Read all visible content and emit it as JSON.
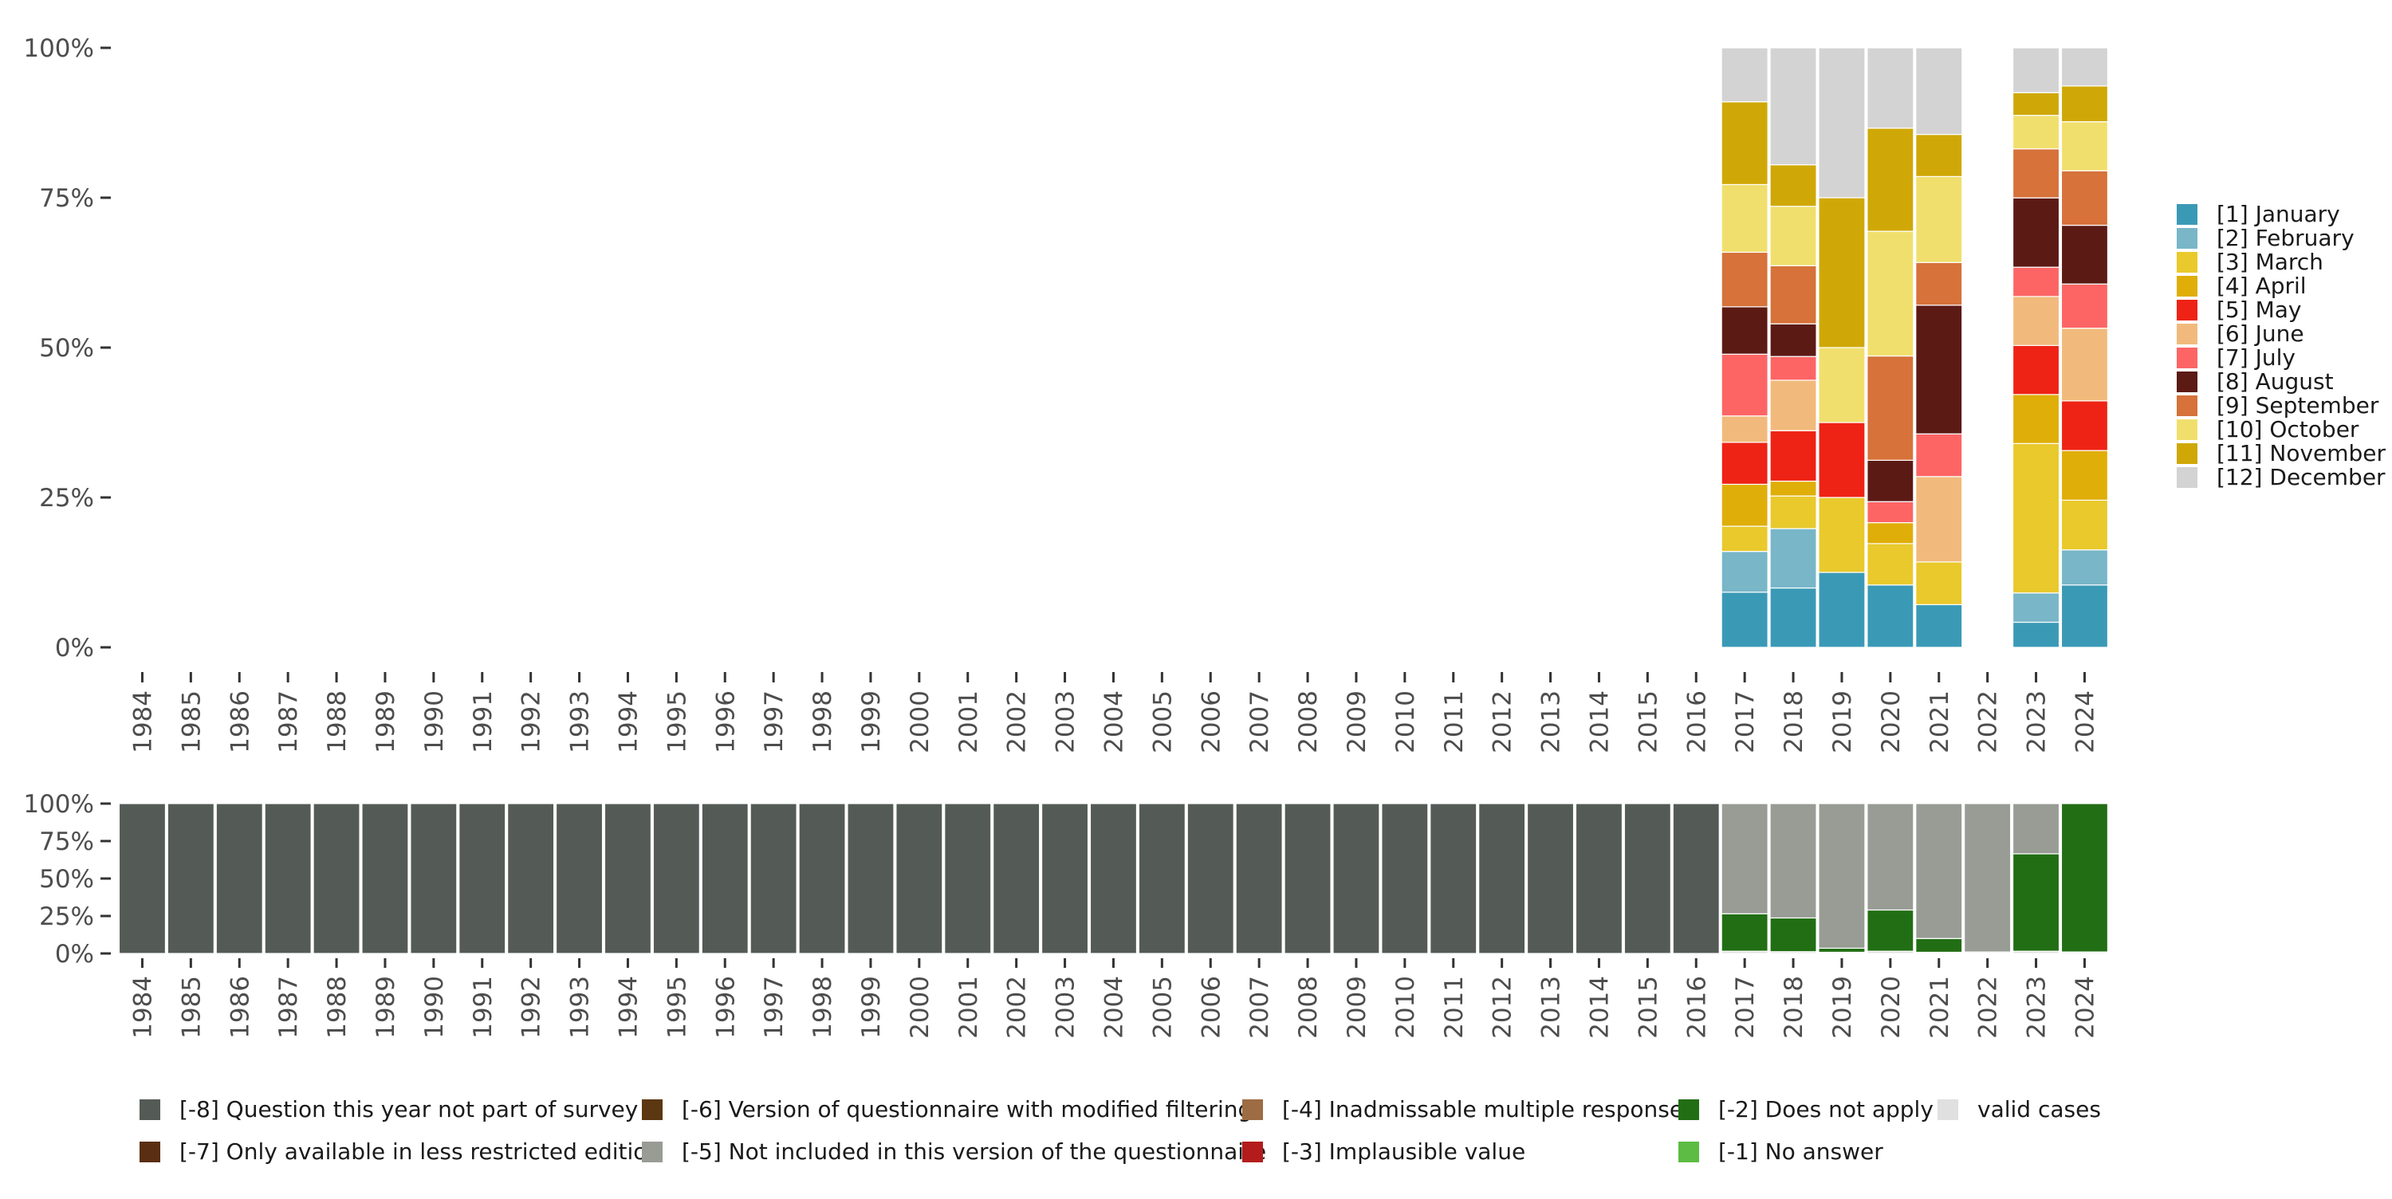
{
  "chart_data": [
    {
      "type": "bar",
      "stacked": true,
      "normalized": true,
      "title": "",
      "xlabel": "",
      "ylabel": "",
      "ylim": [
        0,
        100
      ],
      "y_ticks": [
        "0%",
        "25%",
        "50%",
        "75%",
        "100%"
      ],
      "categories": [
        "1984",
        "1985",
        "1986",
        "1987",
        "1988",
        "1989",
        "1990",
        "1991",
        "1992",
        "1993",
        "1994",
        "1995",
        "1996",
        "1997",
        "1998",
        "1999",
        "2000",
        "2001",
        "2002",
        "2003",
        "2004",
        "2005",
        "2006",
        "2007",
        "2008",
        "2009",
        "2010",
        "2011",
        "2012",
        "2013",
        "2014",
        "2015",
        "2016",
        "2017",
        "2018",
        "2019",
        "2020",
        "2021",
        "2022",
        "2023",
        "2024"
      ],
      "legend_position": "right",
      "series": [
        {
          "name": "[1] January",
          "color": "#3a9ab6",
          "values": [
            0,
            0,
            0,
            0,
            0,
            0,
            0,
            0,
            0,
            0,
            0,
            0,
            0,
            0,
            0,
            0,
            0,
            0,
            0,
            0,
            0,
            0,
            0,
            0,
            0,
            0,
            0,
            0,
            0,
            0,
            0,
            0,
            0,
            9.2,
            10.0,
            12.5,
            10.4,
            7.1,
            0,
            4.2,
            10.3
          ]
        },
        {
          "name": "[2] February",
          "color": "#78b6c8",
          "values": [
            0,
            0,
            0,
            0,
            0,
            0,
            0,
            0,
            0,
            0,
            0,
            0,
            0,
            0,
            0,
            0,
            0,
            0,
            0,
            0,
            0,
            0,
            0,
            0,
            0,
            0,
            0,
            0,
            0,
            0,
            0,
            0,
            0,
            6.8,
            10.0,
            0,
            0,
            0,
            0,
            4.9,
            5.8
          ]
        },
        {
          "name": "[3] March",
          "color": "#e9c92c",
          "values": [
            0,
            0,
            0,
            0,
            0,
            0,
            0,
            0,
            0,
            0,
            0,
            0,
            0,
            0,
            0,
            0,
            0,
            0,
            0,
            0,
            0,
            0,
            0,
            0,
            0,
            0,
            0,
            0,
            0,
            0,
            0,
            0,
            0,
            4.2,
            5.5,
            12.5,
            6.9,
            7.1,
            0,
            25.0,
            8.2
          ]
        },
        {
          "name": "[4] April",
          "color": "#dfae08",
          "values": [
            0,
            0,
            0,
            0,
            0,
            0,
            0,
            0,
            0,
            0,
            0,
            0,
            0,
            0,
            0,
            0,
            0,
            0,
            0,
            0,
            0,
            0,
            0,
            0,
            0,
            0,
            0,
            0,
            0,
            0,
            0,
            0,
            0,
            7.0,
            2.5,
            0,
            3.5,
            0,
            0,
            8.2,
            8.2
          ]
        },
        {
          "name": "[5] May",
          "color": "#ee2315",
          "values": [
            0,
            0,
            0,
            0,
            0,
            0,
            0,
            0,
            0,
            0,
            0,
            0,
            0,
            0,
            0,
            0,
            0,
            0,
            0,
            0,
            0,
            0,
            0,
            0,
            0,
            0,
            0,
            0,
            0,
            0,
            0,
            0,
            0,
            7.0,
            8.5,
            12.5,
            0,
            0,
            0,
            8.2,
            8.2
          ]
        },
        {
          "name": "[6] June",
          "color": "#f1ba7c",
          "values": [
            0,
            0,
            0,
            0,
            0,
            0,
            0,
            0,
            0,
            0,
            0,
            0,
            0,
            0,
            0,
            0,
            0,
            0,
            0,
            0,
            0,
            0,
            0,
            0,
            0,
            0,
            0,
            0,
            0,
            0,
            0,
            0,
            0,
            4.4,
            8.5,
            0,
            0,
            14.2,
            0,
            8.2,
            12.0
          ]
        },
        {
          "name": "[7] July",
          "color": "#fd6565",
          "values": [
            0,
            0,
            0,
            0,
            0,
            0,
            0,
            0,
            0,
            0,
            0,
            0,
            0,
            0,
            0,
            0,
            0,
            0,
            0,
            0,
            0,
            0,
            0,
            0,
            0,
            0,
            0,
            0,
            0,
            0,
            0,
            0,
            0,
            10.3,
            4.0,
            0,
            3.5,
            7.1,
            0,
            4.9,
            7.3
          ]
        },
        {
          "name": "[8] August",
          "color": "#5c1a15",
          "values": [
            0,
            0,
            0,
            0,
            0,
            0,
            0,
            0,
            0,
            0,
            0,
            0,
            0,
            0,
            0,
            0,
            0,
            0,
            0,
            0,
            0,
            0,
            0,
            0,
            0,
            0,
            0,
            0,
            0,
            0,
            0,
            0,
            0,
            7.9,
            5.5,
            0,
            6.9,
            21.4,
            0,
            11.6,
            9.7
          ]
        },
        {
          "name": "[9] September",
          "color": "#d6723a",
          "values": [
            0,
            0,
            0,
            0,
            0,
            0,
            0,
            0,
            0,
            0,
            0,
            0,
            0,
            0,
            0,
            0,
            0,
            0,
            0,
            0,
            0,
            0,
            0,
            0,
            0,
            0,
            0,
            0,
            0,
            0,
            0,
            0,
            0,
            9.1,
            9.8,
            0,
            17.4,
            7.1,
            0,
            8.2,
            9.0
          ]
        },
        {
          "name": "[10] October",
          "color": "#f1df6d",
          "values": [
            0,
            0,
            0,
            0,
            0,
            0,
            0,
            0,
            0,
            0,
            0,
            0,
            0,
            0,
            0,
            0,
            0,
            0,
            0,
            0,
            0,
            0,
            0,
            0,
            0,
            0,
            0,
            0,
            0,
            0,
            0,
            0,
            0,
            11.3,
            10.0,
            12.5,
            20.8,
            14.3,
            0,
            5.6,
            8.1
          ]
        },
        {
          "name": "[11] November",
          "color": "#cfa807",
          "values": [
            0,
            0,
            0,
            0,
            0,
            0,
            0,
            0,
            0,
            0,
            0,
            0,
            0,
            0,
            0,
            0,
            0,
            0,
            0,
            0,
            0,
            0,
            0,
            0,
            0,
            0,
            0,
            0,
            0,
            0,
            0,
            0,
            0,
            13.8,
            7.0,
            25.0,
            17.2,
            7.0,
            0,
            3.8,
            5.9
          ]
        },
        {
          "name": "[12] December",
          "color": "#d3d3d3",
          "values": [
            0,
            0,
            0,
            0,
            0,
            0,
            0,
            0,
            0,
            0,
            0,
            0,
            0,
            0,
            0,
            0,
            0,
            0,
            0,
            0,
            0,
            0,
            0,
            0,
            0,
            0,
            0,
            0,
            0,
            0,
            0,
            0,
            0,
            9.0,
            19.7,
            25.0,
            13.4,
            14.4,
            0,
            7.5,
            6.3
          ]
        }
      ]
    },
    {
      "type": "bar",
      "stacked": true,
      "normalized": true,
      "title": "",
      "xlabel": "",
      "ylabel": "",
      "ylim": [
        0,
        100
      ],
      "y_ticks": [
        "0%",
        "25%",
        "50%",
        "75%",
        "100%"
      ],
      "categories": [
        "1984",
        "1985",
        "1986",
        "1987",
        "1988",
        "1989",
        "1990",
        "1991",
        "1992",
        "1993",
        "1994",
        "1995",
        "1996",
        "1997",
        "1998",
        "1999",
        "2000",
        "2001",
        "2002",
        "2003",
        "2004",
        "2005",
        "2006",
        "2007",
        "2008",
        "2009",
        "2010",
        "2011",
        "2012",
        "2013",
        "2014",
        "2015",
        "2016",
        "2017",
        "2018",
        "2019",
        "2020",
        "2021",
        "2022",
        "2023",
        "2024"
      ],
      "legend_position": "bottom",
      "series": [
        {
          "name": "valid cases",
          "color": "#e0e0e0",
          "values": [
            0,
            0,
            0,
            0,
            0,
            0,
            0,
            0,
            0,
            0,
            0,
            0,
            0,
            0,
            0,
            0,
            0,
            0,
            0,
            0,
            0,
            0,
            0,
            0,
            0,
            0,
            0,
            0,
            0,
            0,
            0,
            0,
            0,
            1.5,
            1.2,
            0.8,
            1.5,
            0.8,
            0.3,
            1.5,
            1.0
          ]
        },
        {
          "name": "[-2] Does not apply",
          "color": "#226e14",
          "values": [
            0,
            0,
            0,
            0,
            0,
            0,
            0,
            0,
            0,
            0,
            0,
            0,
            0,
            0,
            0,
            0,
            0,
            0,
            0,
            0,
            0,
            0,
            0,
            0,
            0,
            0,
            0,
            0,
            0,
            0,
            0,
            0,
            0,
            25.0,
            22.5,
            2.7,
            27.5,
            9.2,
            0.7,
            65.0,
            98.5
          ]
        },
        {
          "name": "[-5] Not included in this version of the questionnaire",
          "color": "#989c95",
          "values": [
            0,
            0,
            0,
            0,
            0,
            0,
            0,
            0,
            0,
            0,
            0,
            0,
            0,
            0,
            0,
            0,
            0,
            0,
            0,
            0,
            0,
            0,
            0,
            0,
            0,
            0,
            0,
            0,
            0,
            0,
            0,
            0,
            0,
            73.5,
            76.3,
            96.5,
            71.0,
            90.0,
            99.0,
            33.5,
            0
          ]
        },
        {
          "name": "[-8] Question this year not part of survey",
          "color": "#545b56",
          "values": [
            100,
            100,
            100,
            100,
            100,
            100,
            100,
            100,
            100,
            100,
            100,
            100,
            100,
            100,
            100,
            100,
            100,
            100,
            100,
            100,
            100,
            100,
            100,
            100,
            100,
            100,
            100,
            100,
            100,
            100,
            100,
            100,
            100,
            0,
            0,
            0,
            0,
            0,
            0,
            0,
            0
          ]
        }
      ],
      "legend": [
        {
          "label": "[-8] Question this year not part of survey",
          "color": "#545b56"
        },
        {
          "label": "[-6] Version of questionnaire with modified filtering",
          "color": "#5b3712"
        },
        {
          "label": "[-4] Inadmissable multiple response",
          "color": "#9d6c43"
        },
        {
          "label": "[-2] Does not apply",
          "color": "#226e14"
        },
        {
          "label": "valid cases",
          "color": "#e0e0e0"
        },
        {
          "label": "[-7] Only available in less restricted edition",
          "color": "#5a2e12"
        },
        {
          "label": "[-5] Not included in this version of the questionnaire",
          "color": "#989c95"
        },
        {
          "label": "[-3] Implausible value",
          "color": "#b41c1c"
        },
        {
          "label": "[-1] No answer",
          "color": "#5cbc43"
        }
      ]
    }
  ]
}
